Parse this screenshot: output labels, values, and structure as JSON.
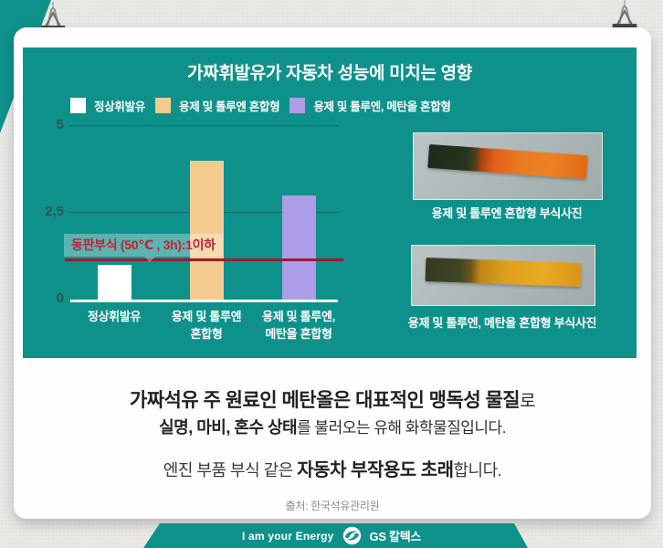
{
  "colors": {
    "teal": "#0E918B",
    "annotation_red": "#C51F35",
    "reference_line_red": "#9C1A33",
    "card_white": "#FEFEFE",
    "background_gray": "#E9E8E5"
  },
  "chart_data": {
    "type": "bar",
    "title": "가짜휘발유가 자동차 성능에 미치는 영향",
    "categories": [
      "정상휘발유",
      "용제 및 톨루엔\n혼합형",
      "용제 및 톨루엔,\n메탄올 혼합형"
    ],
    "values": [
      1.0,
      4.0,
      3.0
    ],
    "bar_colors": [
      "#FFFFFF",
      "#F4CB8F",
      "#AB9DE6"
    ],
    "ylim": [
      0,
      5
    ],
    "yticks": [
      {
        "value": 0,
        "label": "0"
      },
      {
        "value": 2.5,
        "label": "2,5"
      },
      {
        "value": 5,
        "label": "5"
      }
    ],
    "grid": "horizontal",
    "legend_position": "top",
    "legend": [
      {
        "label": "정상휘발유",
        "color": "#FFFFFF"
      },
      {
        "label": "용제 및 톨루엔 혼합형",
        "color": "#F4CB8F"
      },
      {
        "label": "용제 및 톨루엔, 메탄올 혼합형",
        "color": "#AB9DE6"
      }
    ],
    "reference_line": {
      "value": 1.1,
      "label": "동판부식 (50℃ , 3h):1이하",
      "color": "#9C1A33"
    }
  },
  "photos": [
    {
      "caption": "용제 및 톨루엔 혼합형 부식사진"
    },
    {
      "caption": "용제 및 톨루엔, 메탄올 혼합형 부식사진"
    }
  ],
  "body": {
    "line1_bold": "가짜석유 주 원료인 메탄올은 대표적인 맹독성 물질",
    "line1_rest": "로",
    "line2_bold": "실명, 마비, 혼수 상태",
    "line2_rest": "를 불러오는 유해 화학물질입니다.",
    "line3_pre": "엔진 부품 부식 같은 ",
    "line3_bold": "자동차 부작용도 초래",
    "line3_post": "합니다.",
    "source": "출처: 한국석유관리원"
  },
  "footer": {
    "slogan": "I am your Energy",
    "brand": "GS 칼텍스"
  }
}
